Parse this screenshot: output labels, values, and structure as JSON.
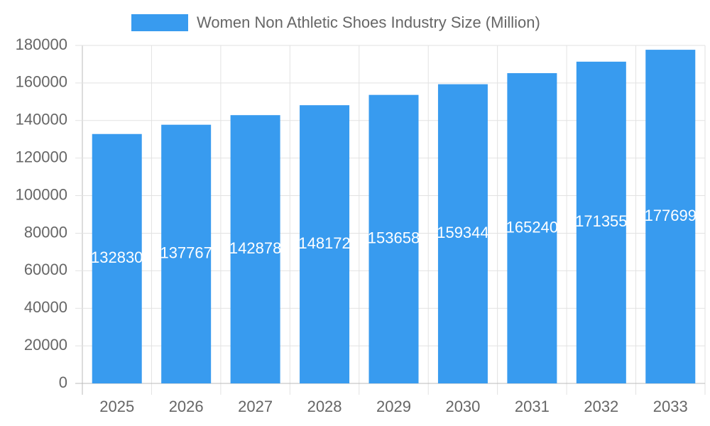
{
  "chart_data": {
    "type": "bar",
    "categories": [
      "2025",
      "2026",
      "2027",
      "2028",
      "2029",
      "2030",
      "2031",
      "2032",
      "2033"
    ],
    "series": [
      {
        "name": "Women Non Athletic Shoes Industry Size (Million)",
        "color": "#389bef",
        "values": [
          132830,
          137767,
          142878,
          148172,
          153658,
          159344,
          165240,
          171355,
          177699
        ]
      }
    ],
    "ylim": [
      0,
      180000
    ],
    "yticks": [
      0,
      20000,
      40000,
      60000,
      80000,
      100000,
      120000,
      140000,
      160000,
      180000
    ],
    "grid": true
  }
}
